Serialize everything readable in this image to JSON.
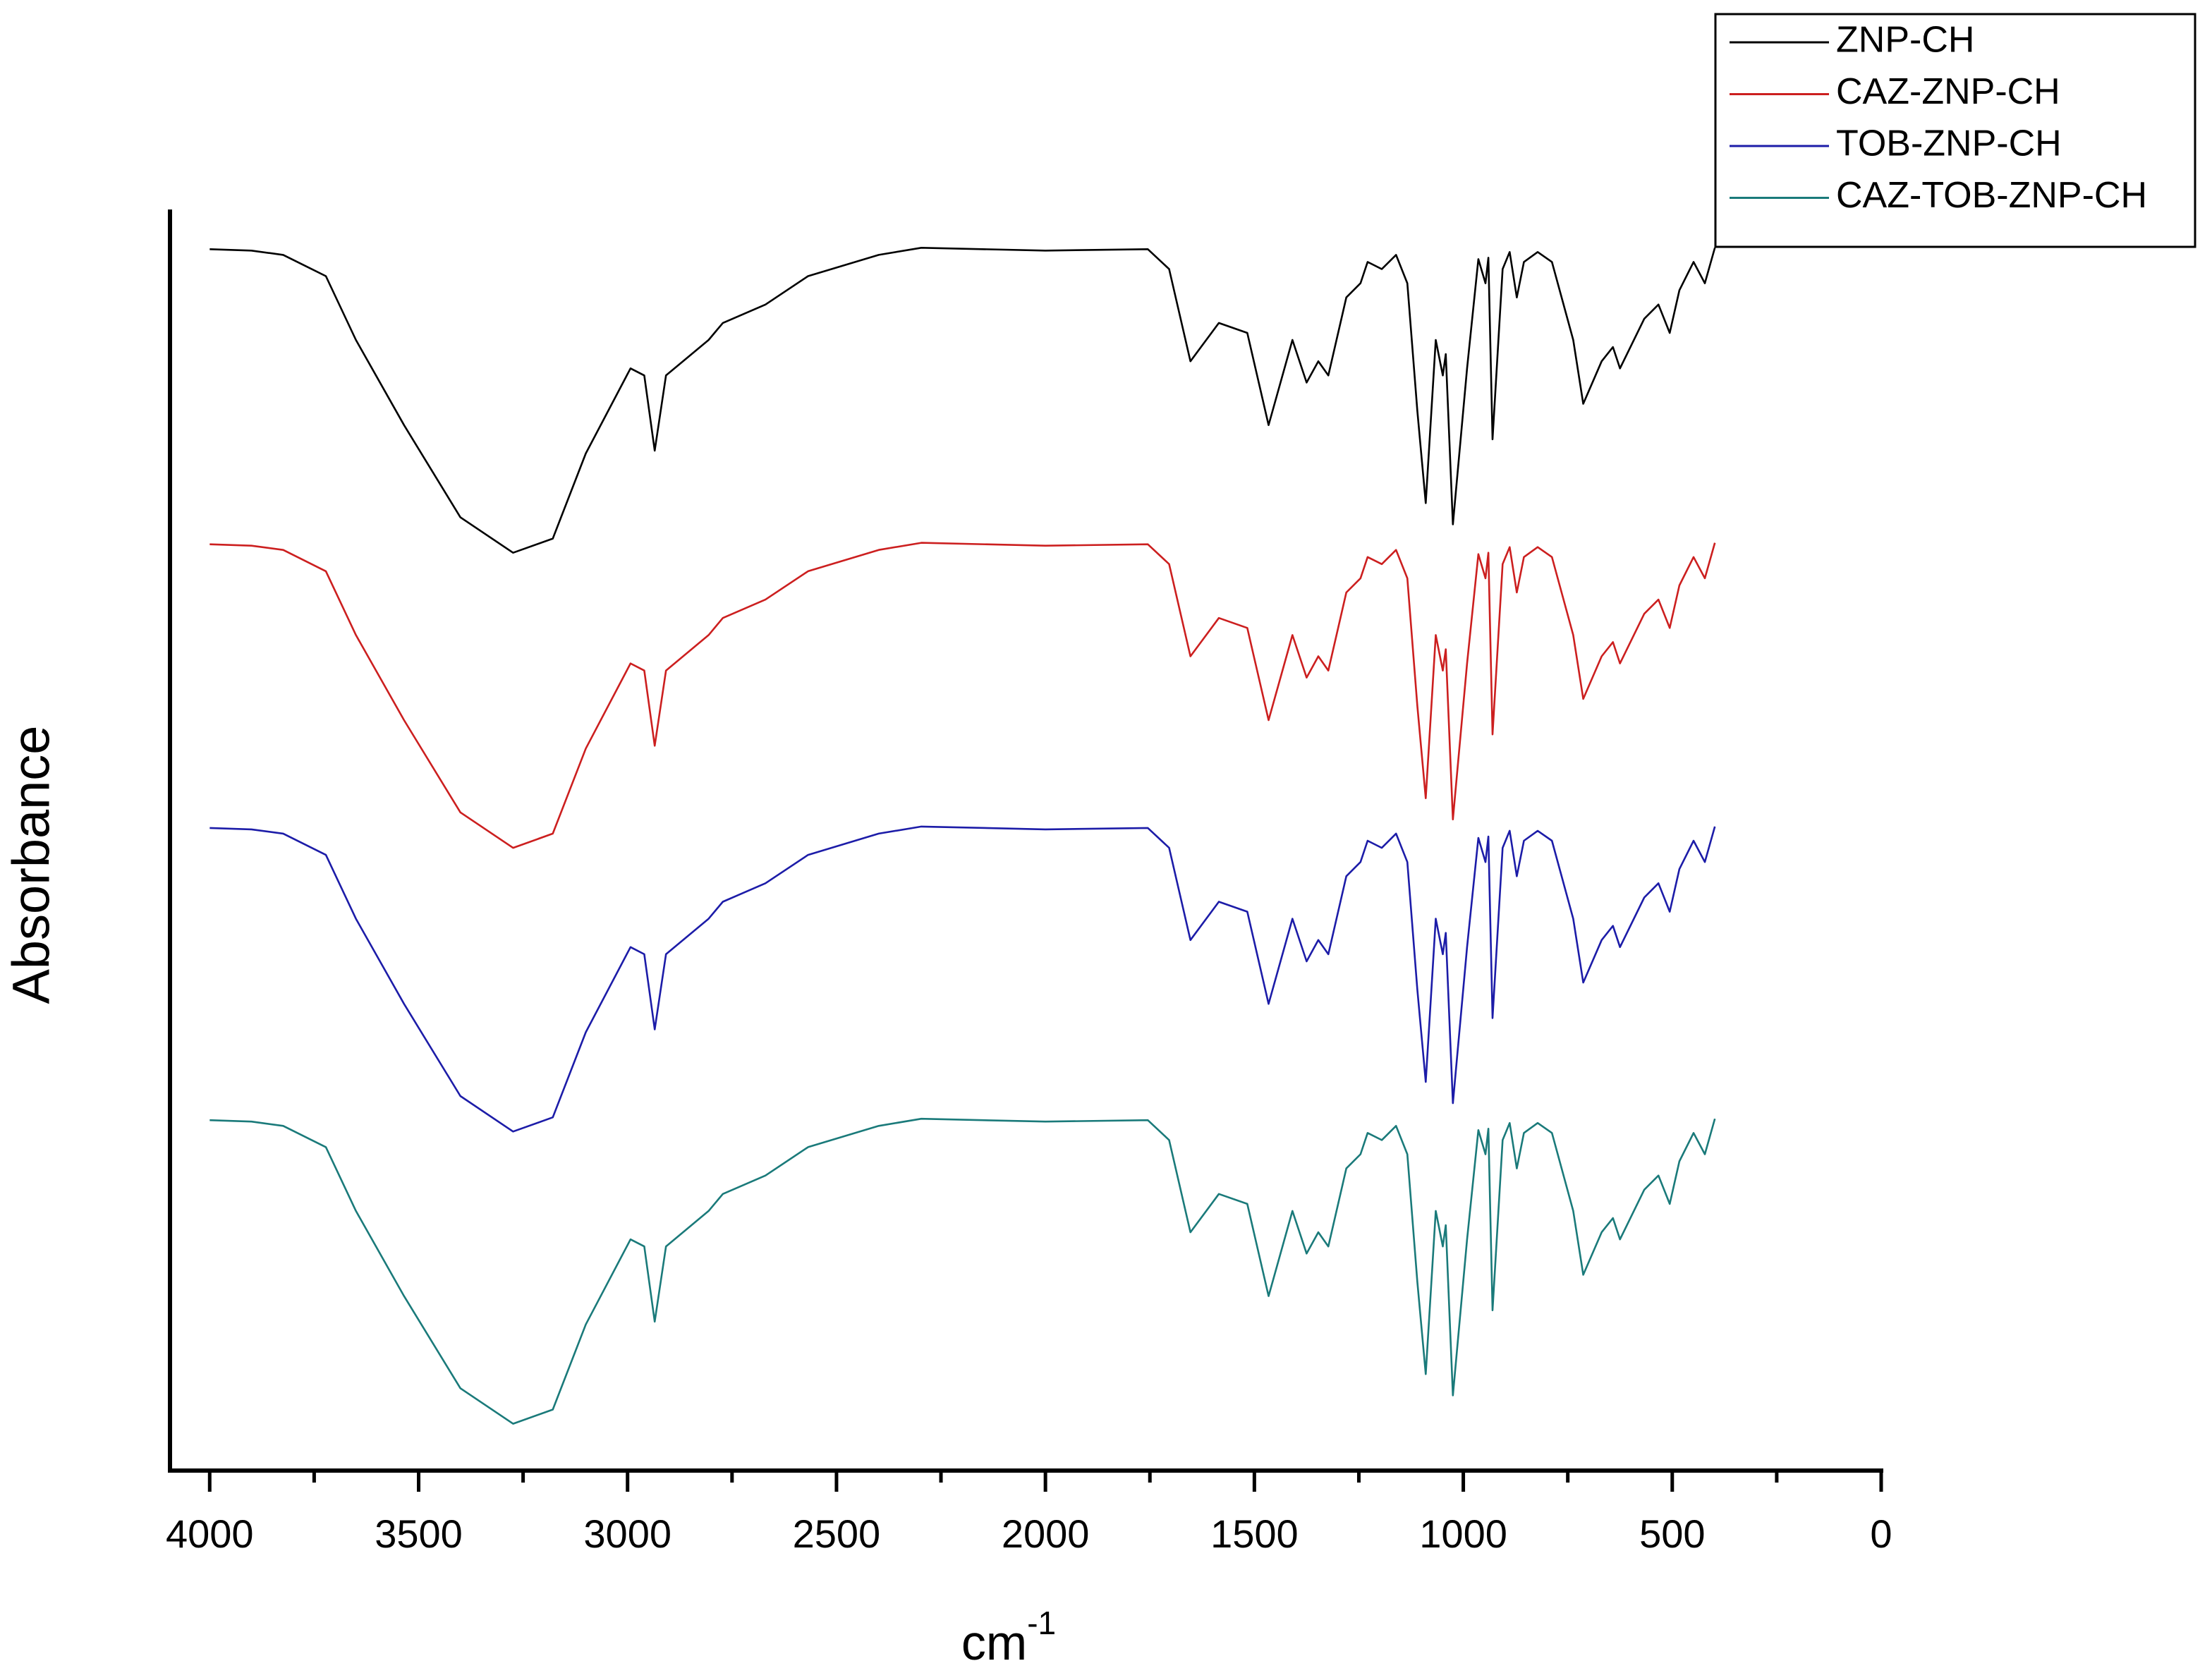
{
  "chart_data": {
    "type": "line",
    "x_label": {
      "base": "cm",
      "superscript": "-1"
    },
    "y_label": "Absorbance",
    "xlim": [
      4095,
      0
    ],
    "xticks": [
      4000,
      3500,
      3000,
      2500,
      2000,
      1500,
      1000,
      500,
      0
    ],
    "xminorticks": [
      3750,
      3250,
      2750,
      2250,
      1750,
      1250,
      750,
      250
    ],
    "ylim": [
      0,
      889
    ],
    "legend": "top-right",
    "x": [
      4000,
      3900,
      3824,
      3722,
      3650,
      3535,
      3400,
      3274,
      3179,
      3100,
      2993,
      2960,
      2935,
      2908,
      2806,
      2772,
      2670,
      2568,
      2399,
      2297,
      2000,
      1755,
      1704,
      1653,
      1585,
      1517,
      1466,
      1409,
      1375,
      1347,
      1323,
      1280,
      1246,
      1229,
      1195,
      1161,
      1134,
      1110,
      1090,
      1066,
      1049,
      1042,
      1025,
      991,
      964,
      947,
      940,
      930,
      906,
      889,
      872,
      855,
      822,
      788,
      737,
      713,
      669,
      642,
      625,
      567,
      533,
      506,
      483,
      449,
      422,
      398
    ],
    "series": [
      {
        "name": "ZNP-CH",
        "color": "#000000",
        "values": [
          861,
          860,
          857,
          842,
          797,
          737,
          672,
          647,
          657,
          717,
          777,
          772,
          719,
          772,
          797,
          809,
          822,
          842,
          857,
          862,
          860,
          861,
          847,
          782,
          809,
          802,
          737,
          797,
          767,
          782,
          772,
          827,
          837,
          852,
          847,
          857,
          837,
          747,
          682,
          797,
          772,
          787,
          667,
          777,
          854,
          837,
          855,
          727,
          847,
          859,
          827,
          852,
          859,
          852,
          797,
          752,
          782,
          792,
          777,
          812,
          822,
          802,
          832,
          852,
          837,
          862
        ]
      },
      {
        "name": "CAZ-ZNP-CH",
        "color": "#cc1f1f",
        "values": [
          653,
          652,
          649,
          634,
          589,
          529,
          464,
          439,
          449,
          509,
          569,
          564,
          511,
          564,
          589,
          601,
          614,
          634,
          649,
          654,
          652,
          653,
          639,
          574,
          601,
          594,
          529,
          589,
          559,
          574,
          564,
          619,
          629,
          644,
          639,
          649,
          629,
          539,
          474,
          589,
          564,
          579,
          459,
          569,
          646,
          629,
          647,
          519,
          639,
          651,
          619,
          644,
          651,
          644,
          589,
          544,
          574,
          584,
          569,
          604,
          614,
          594,
          624,
          644,
          629,
          654
        ]
      },
      {
        "name": "TOB-ZNP-CH",
        "color": "#1c1ca8",
        "values": [
          453,
          452,
          449,
          434,
          389,
          329,
          264,
          239,
          249,
          309,
          369,
          364,
          311,
          364,
          389,
          401,
          414,
          434,
          449,
          454,
          452,
          453,
          439,
          374,
          401,
          394,
          329,
          389,
          359,
          374,
          364,
          419,
          429,
          444,
          439,
          449,
          429,
          339,
          274,
          389,
          364,
          379,
          259,
          369,
          446,
          429,
          447,
          319,
          439,
          451,
          419,
          444,
          451,
          444,
          389,
          344,
          374,
          384,
          369,
          404,
          414,
          394,
          424,
          444,
          429,
          454
        ]
      },
      {
        "name": "CAZ-TOB-ZNP-CH",
        "color": "#1a7a7a",
        "values": [
          247,
          246,
          243,
          228,
          183,
          123,
          58,
          33,
          43,
          103,
          163,
          158,
          105,
          158,
          183,
          195,
          208,
          228,
          243,
          248,
          246,
          247,
          233,
          168,
          195,
          188,
          123,
          183,
          153,
          168,
          158,
          213,
          223,
          238,
          233,
          243,
          223,
          133,
          68,
          183,
          158,
          173,
          53,
          163,
          240,
          223,
          241,
          113,
          233,
          245,
          213,
          238,
          245,
          238,
          183,
          138,
          168,
          178,
          163,
          198,
          208,
          188,
          218,
          238,
          223,
          248
        ]
      }
    ]
  }
}
